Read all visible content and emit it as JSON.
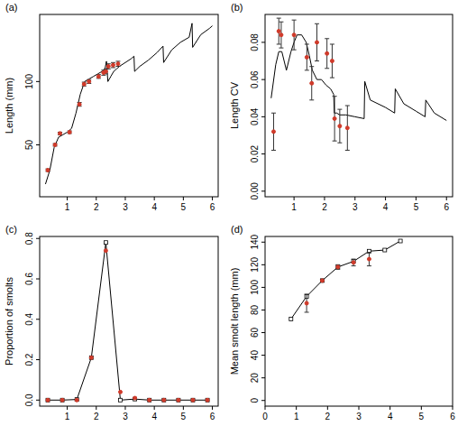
{
  "chart_data": [
    {
      "type": "line",
      "title": "(a)",
      "y_label": "Length (mm)",
      "xlim": [
        0.05,
        6.2
      ],
      "ylim": [
        9,
        153
      ],
      "xticks": [
        1,
        2,
        3,
        4,
        5,
        6
      ],
      "yticks": [
        50,
        100
      ],
      "series": [
        {
          "type": "line",
          "color": "#000000",
          "line_style": "solid",
          "x": [
            0.25,
            0.4,
            0.55,
            0.7,
            0.85,
            1.0,
            1.15,
            1.3,
            1.45,
            1.6,
            1.75,
            1.9,
            2.05,
            2.2,
            2.3,
            2.35,
            2.4,
            2.5,
            2.6,
            2.7,
            2.8,
            3.0,
            3.2,
            3.3,
            3.32,
            3.5,
            3.8,
            4.1,
            4.3,
            4.32,
            4.6,
            4.9,
            5.2,
            5.3,
            5.32,
            5.6,
            5.9,
            6.0
          ],
          "values": [
            19,
            30,
            48,
            56,
            58,
            60,
            63,
            75,
            90,
            100,
            102,
            104,
            106,
            108,
            110,
            116,
            100,
            104,
            108,
            110,
            112,
            115,
            118,
            120,
            108,
            112,
            117,
            123,
            128,
            115,
            125,
            131,
            135,
            146,
            127,
            137,
            142,
            144
          ]
        },
        {
          "type": "scatter",
          "color": "#d03a2a",
          "marker": "circle",
          "x": [
            0.33,
            0.58,
            0.75,
            1.08,
            1.42,
            1.58,
            1.75,
            2.08,
            2.25,
            2.33,
            2.42,
            2.58,
            2.75
          ],
          "values": [
            30,
            50,
            59,
            60,
            82,
            98,
            100,
            104,
            107,
            108,
            112,
            113,
            114
          ],
          "errors": [
            1,
            1,
            1,
            1,
            1.5,
            1.5,
            1.5,
            1.5,
            2,
            2,
            2,
            2,
            2
          ]
        }
      ]
    },
    {
      "type": "line",
      "title": "(b)",
      "y_label": "Length CV",
      "xlim": [
        0.05,
        6.2
      ],
      "ylim": [
        -0.003,
        0.095
      ],
      "xticks": [
        1,
        2,
        3,
        4,
        5,
        6
      ],
      "yticks": [
        {
          "value": 0,
          "label": "0.00"
        },
        {
          "value": 0.02,
          "label": "0.02"
        },
        {
          "value": 0.04,
          "label": "0.04"
        },
        {
          "value": 0.06,
          "label": "0.06"
        },
        {
          "value": 0.08,
          "label": "0.08"
        }
      ],
      "series": [
        {
          "type": "line",
          "color": "#000000",
          "line_style": "solid",
          "x": [
            0.25,
            0.4,
            0.5,
            0.6,
            0.75,
            0.9,
            1.0,
            1.1,
            1.25,
            1.4,
            1.5,
            1.6,
            1.75,
            1.9,
            2.05,
            2.2,
            2.3,
            2.32,
            2.4,
            2.5,
            2.7,
            3.0,
            3.3,
            3.32,
            3.5,
            4.0,
            4.3,
            4.32,
            4.6,
            5.0,
            5.3,
            5.32,
            5.6,
            6.0
          ],
          "values": [
            0.05,
            0.068,
            0.075,
            0.075,
            0.065,
            0.075,
            0.08,
            0.084,
            0.084,
            0.08,
            0.073,
            0.065,
            0.06,
            0.06,
            0.057,
            0.055,
            0.052,
            0.042,
            0.042,
            0.041,
            0.041,
            0.04,
            0.039,
            0.059,
            0.049,
            0.045,
            0.042,
            0.055,
            0.047,
            0.043,
            0.04,
            0.049,
            0.042,
            0.038
          ]
        },
        {
          "type": "scatter",
          "color": "#d03a2a",
          "marker": "circle",
          "x": [
            0.33,
            0.5,
            0.58,
            1.0,
            1.42,
            1.58,
            1.75,
            2.08,
            2.25,
            2.33,
            2.5,
            2.75
          ],
          "values": [
            0.032,
            0.086,
            0.084,
            0.084,
            0.072,
            0.058,
            0.08,
            0.074,
            0.07,
            0.039,
            0.035,
            0.034
          ],
          "errors": [
            0.01,
            0.007,
            0.007,
            0.008,
            0.007,
            0.009,
            0.01,
            0.008,
            0.009,
            0.012,
            0.009,
            0.012
          ]
        }
      ]
    },
    {
      "type": "line",
      "title": "(c)",
      "y_label": "Proportion of smolts",
      "xlim": [
        0.05,
        6.2
      ],
      "ylim": [
        -0.03,
        0.81
      ],
      "xticks": [
        1,
        2,
        3,
        4,
        5,
        6
      ],
      "yticks": [
        {
          "value": 0,
          "label": "0.0"
        },
        0.2,
        0.4,
        0.6,
        0.8
      ],
      "series": [
        {
          "type": "line",
          "color": "#000000",
          "marker": "square",
          "line_style": "solid",
          "x": [
            0.33,
            0.83,
            1.33,
            1.83,
            2.33,
            2.83,
            3.33,
            3.83,
            4.33,
            4.83,
            5.33,
            5.83
          ],
          "values": [
            0,
            0,
            0.003,
            0.21,
            0.78,
            0,
            0.005,
            0,
            0,
            0,
            0,
            0
          ]
        },
        {
          "type": "scatter",
          "color": "#d03a2a",
          "marker": "circle",
          "x": [
            0.33,
            0.83,
            1.33,
            1.83,
            2.33,
            2.83,
            3.33,
            3.83,
            4.33,
            4.83,
            5.33,
            5.83
          ],
          "values": [
            0,
            0,
            0,
            0.21,
            0.74,
            0.04,
            0.01,
            0,
            0,
            0,
            0,
            0
          ]
        }
      ]
    },
    {
      "type": "line",
      "title": "(d)",
      "y_label": "Mean smolt length (mm)",
      "xlim": [
        0,
        6
      ],
      "ylim": [
        -5,
        145
      ],
      "xticks": [
        0,
        1,
        2,
        3,
        4,
        5,
        6
      ],
      "yticks": [
        0,
        20,
        40,
        60,
        80,
        100,
        120,
        140
      ],
      "series": [
        {
          "type": "line",
          "color": "#000000",
          "marker": "square",
          "line_style": "solid",
          "x": [
            0.83,
            1.33,
            1.83,
            2.33,
            2.83,
            3.33,
            3.83,
            4.33
          ],
          "values": [
            72,
            92,
            106,
            118,
            123,
            132,
            133,
            141
          ]
        },
        {
          "type": "scatter",
          "color": "#d03a2a",
          "marker": "circle",
          "x": [
            1.33,
            1.83,
            2.33,
            2.83,
            3.33
          ],
          "values": [
            86,
            106,
            118,
            122,
            125
          ],
          "errors": [
            8,
            1,
            2,
            3,
            6
          ]
        }
      ]
    }
  ]
}
